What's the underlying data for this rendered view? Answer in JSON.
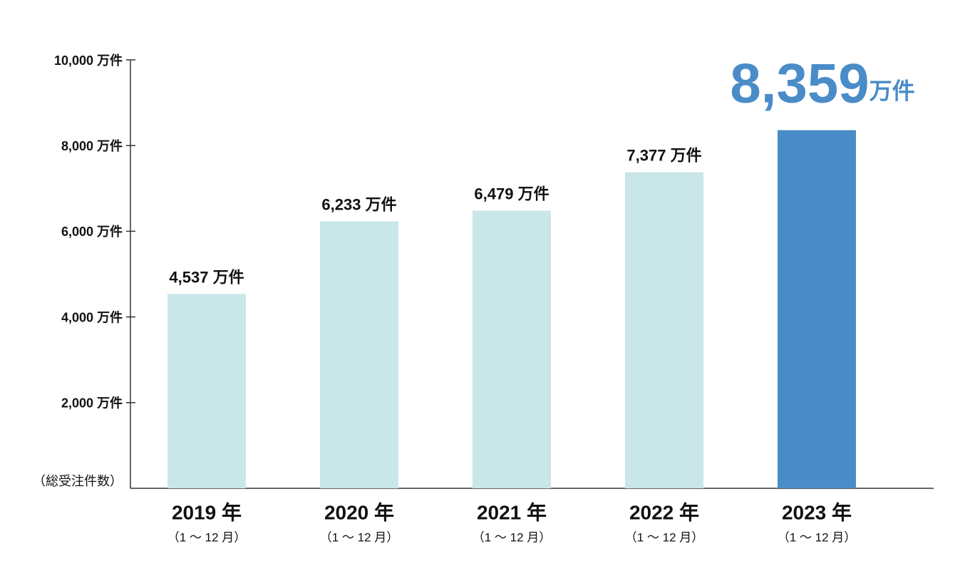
{
  "chart_data": {
    "type": "bar",
    "ylabel": "（総受注件数）",
    "categories": [
      "2019 年",
      "2020 年",
      "2021 年",
      "2022 年",
      "2023 年"
    ],
    "category_sublabels": [
      "（1 ～ 12 月）",
      "（1 ～ 12 月）",
      "（1 ～ 12 月）",
      "（1 ～ 12 月）",
      "（1 ～ 12 月）"
    ],
    "values": [
      4537,
      6233,
      6479,
      7377,
      8359
    ],
    "value_labels": [
      "4,537 万件",
      "6,233 万件",
      "6,479 万件",
      "7,377 万件",
      "8,359万件"
    ],
    "colors": [
      "#c9e6e9",
      "#c9e6e9",
      "#c9e6e9",
      "#c9e6e9",
      "#4a8cc8"
    ],
    "highlight_label_color": "#4a8cc8",
    "ylim": [
      0,
      10000
    ],
    "yticks": [
      {
        "value": 2000,
        "label": "2,000 万件"
      },
      {
        "value": 4000,
        "label": "4,000 万件"
      },
      {
        "value": 6000,
        "label": "6,000 万件"
      },
      {
        "value": 8000,
        "label": "8,000 万件"
      },
      {
        "value": 10000,
        "label": "10,000 万件"
      }
    ]
  }
}
